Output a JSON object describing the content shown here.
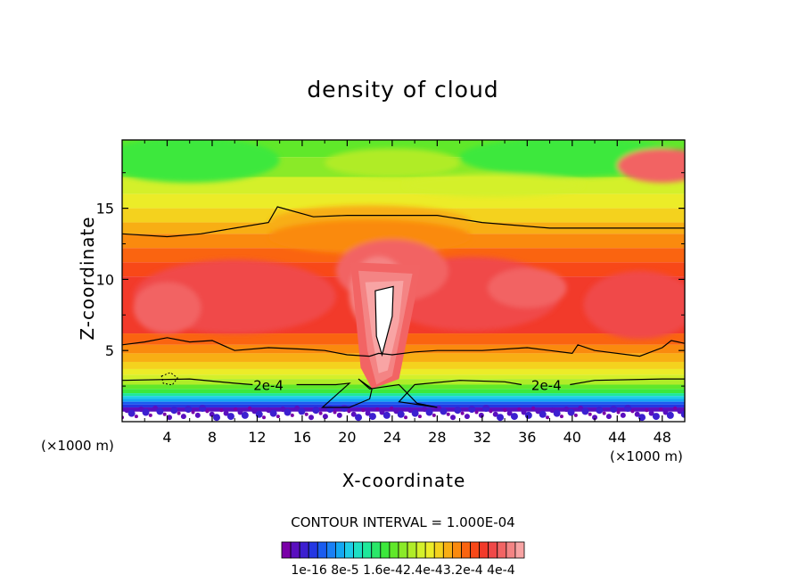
{
  "chart_data": {
    "type": "heatmap",
    "title": "density of cloud",
    "xlabel": "X-coordinate",
    "ylabel": "Z-coordinate",
    "x_unit": "(×1000 m)",
    "y_unit": "(×1000 m)",
    "xlim": [
      0,
      50
    ],
    "ylim": [
      0,
      19.8
    ],
    "xticks": [
      4,
      8,
      12,
      16,
      20,
      24,
      28,
      32,
      36,
      40,
      44,
      48
    ],
    "yticks": [
      5,
      10,
      15
    ],
    "contour_labels": [
      {
        "text": "2e-4",
        "x": 13,
        "y": 2.6
      },
      {
        "text": "2e-4",
        "x": 37.7,
        "y": 2.6
      }
    ],
    "contour_interval": "CONTOUR INTERVAL = 1.000E-04",
    "colorbar": {
      "tick_labels": [
        "1e-16",
        "8e-5",
        "1.6e-4",
        "2.4e-4",
        "3.2e-4",
        "4e-4"
      ],
      "tick_labels_as_printed": "1e-16  8e-5 1.6e-42.4e-43.2e-4 4e-4",
      "colors": [
        "#7a00a8",
        "#5a0fbf",
        "#3c1fd0",
        "#2437e3",
        "#1a5cf0",
        "#1a80f5",
        "#14a8f2",
        "#1ecde8",
        "#1ee0c4",
        "#1ee89a",
        "#2ae869",
        "#3ce83c",
        "#60e82a",
        "#8aea28",
        "#b0ec28",
        "#d4f02a",
        "#ecec28",
        "#f4d21e",
        "#f8ae14",
        "#fa8a0e",
        "#fa6410",
        "#f84818",
        "#f23a2a",
        "#f04848",
        "#f26464",
        "#f48484",
        "#f8a4a4"
      ]
    },
    "fields": {
      "upper_layer_peak_value": "3e-4 to 4e-4",
      "anvil_core_value": "above 4e-4",
      "lower_layer_value": "1e-16 to 1e-4"
    }
  }
}
